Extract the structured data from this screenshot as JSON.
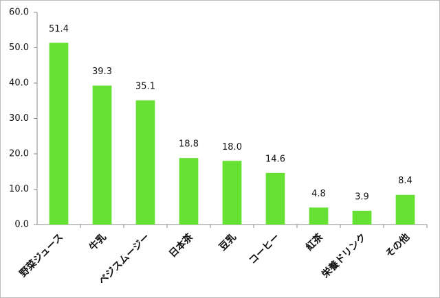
{
  "chart_data": {
    "type": "bar",
    "categories": [
      "野菜ジュース",
      "牛乳",
      "ベジスムージー",
      "日本茶",
      "豆乳",
      "コーヒー",
      "紅茶",
      "栄養ドリンク",
      "その他"
    ],
    "values": [
      51.4,
      39.3,
      35.1,
      18.8,
      18.0,
      14.6,
      4.8,
      3.9,
      8.4
    ],
    "value_labels": [
      "51.4",
      "39.3",
      "35.1",
      "18.8",
      "18.0",
      "14.6",
      "4.8",
      "3.9",
      "8.4"
    ],
    "color": "#66e033",
    "ylim": [
      0,
      60
    ],
    "yticks": [
      {
        "value": 0,
        "label": "0.0"
      },
      {
        "value": 10,
        "label": "10.0"
      },
      {
        "value": 20,
        "label": "20.0"
      },
      {
        "value": 30,
        "label": "30.0"
      },
      {
        "value": 40,
        "label": "40.0"
      },
      {
        "value": 50,
        "label": "50.0"
      },
      {
        "value": 60,
        "label": "60.0"
      }
    ],
    "grid": false
  }
}
